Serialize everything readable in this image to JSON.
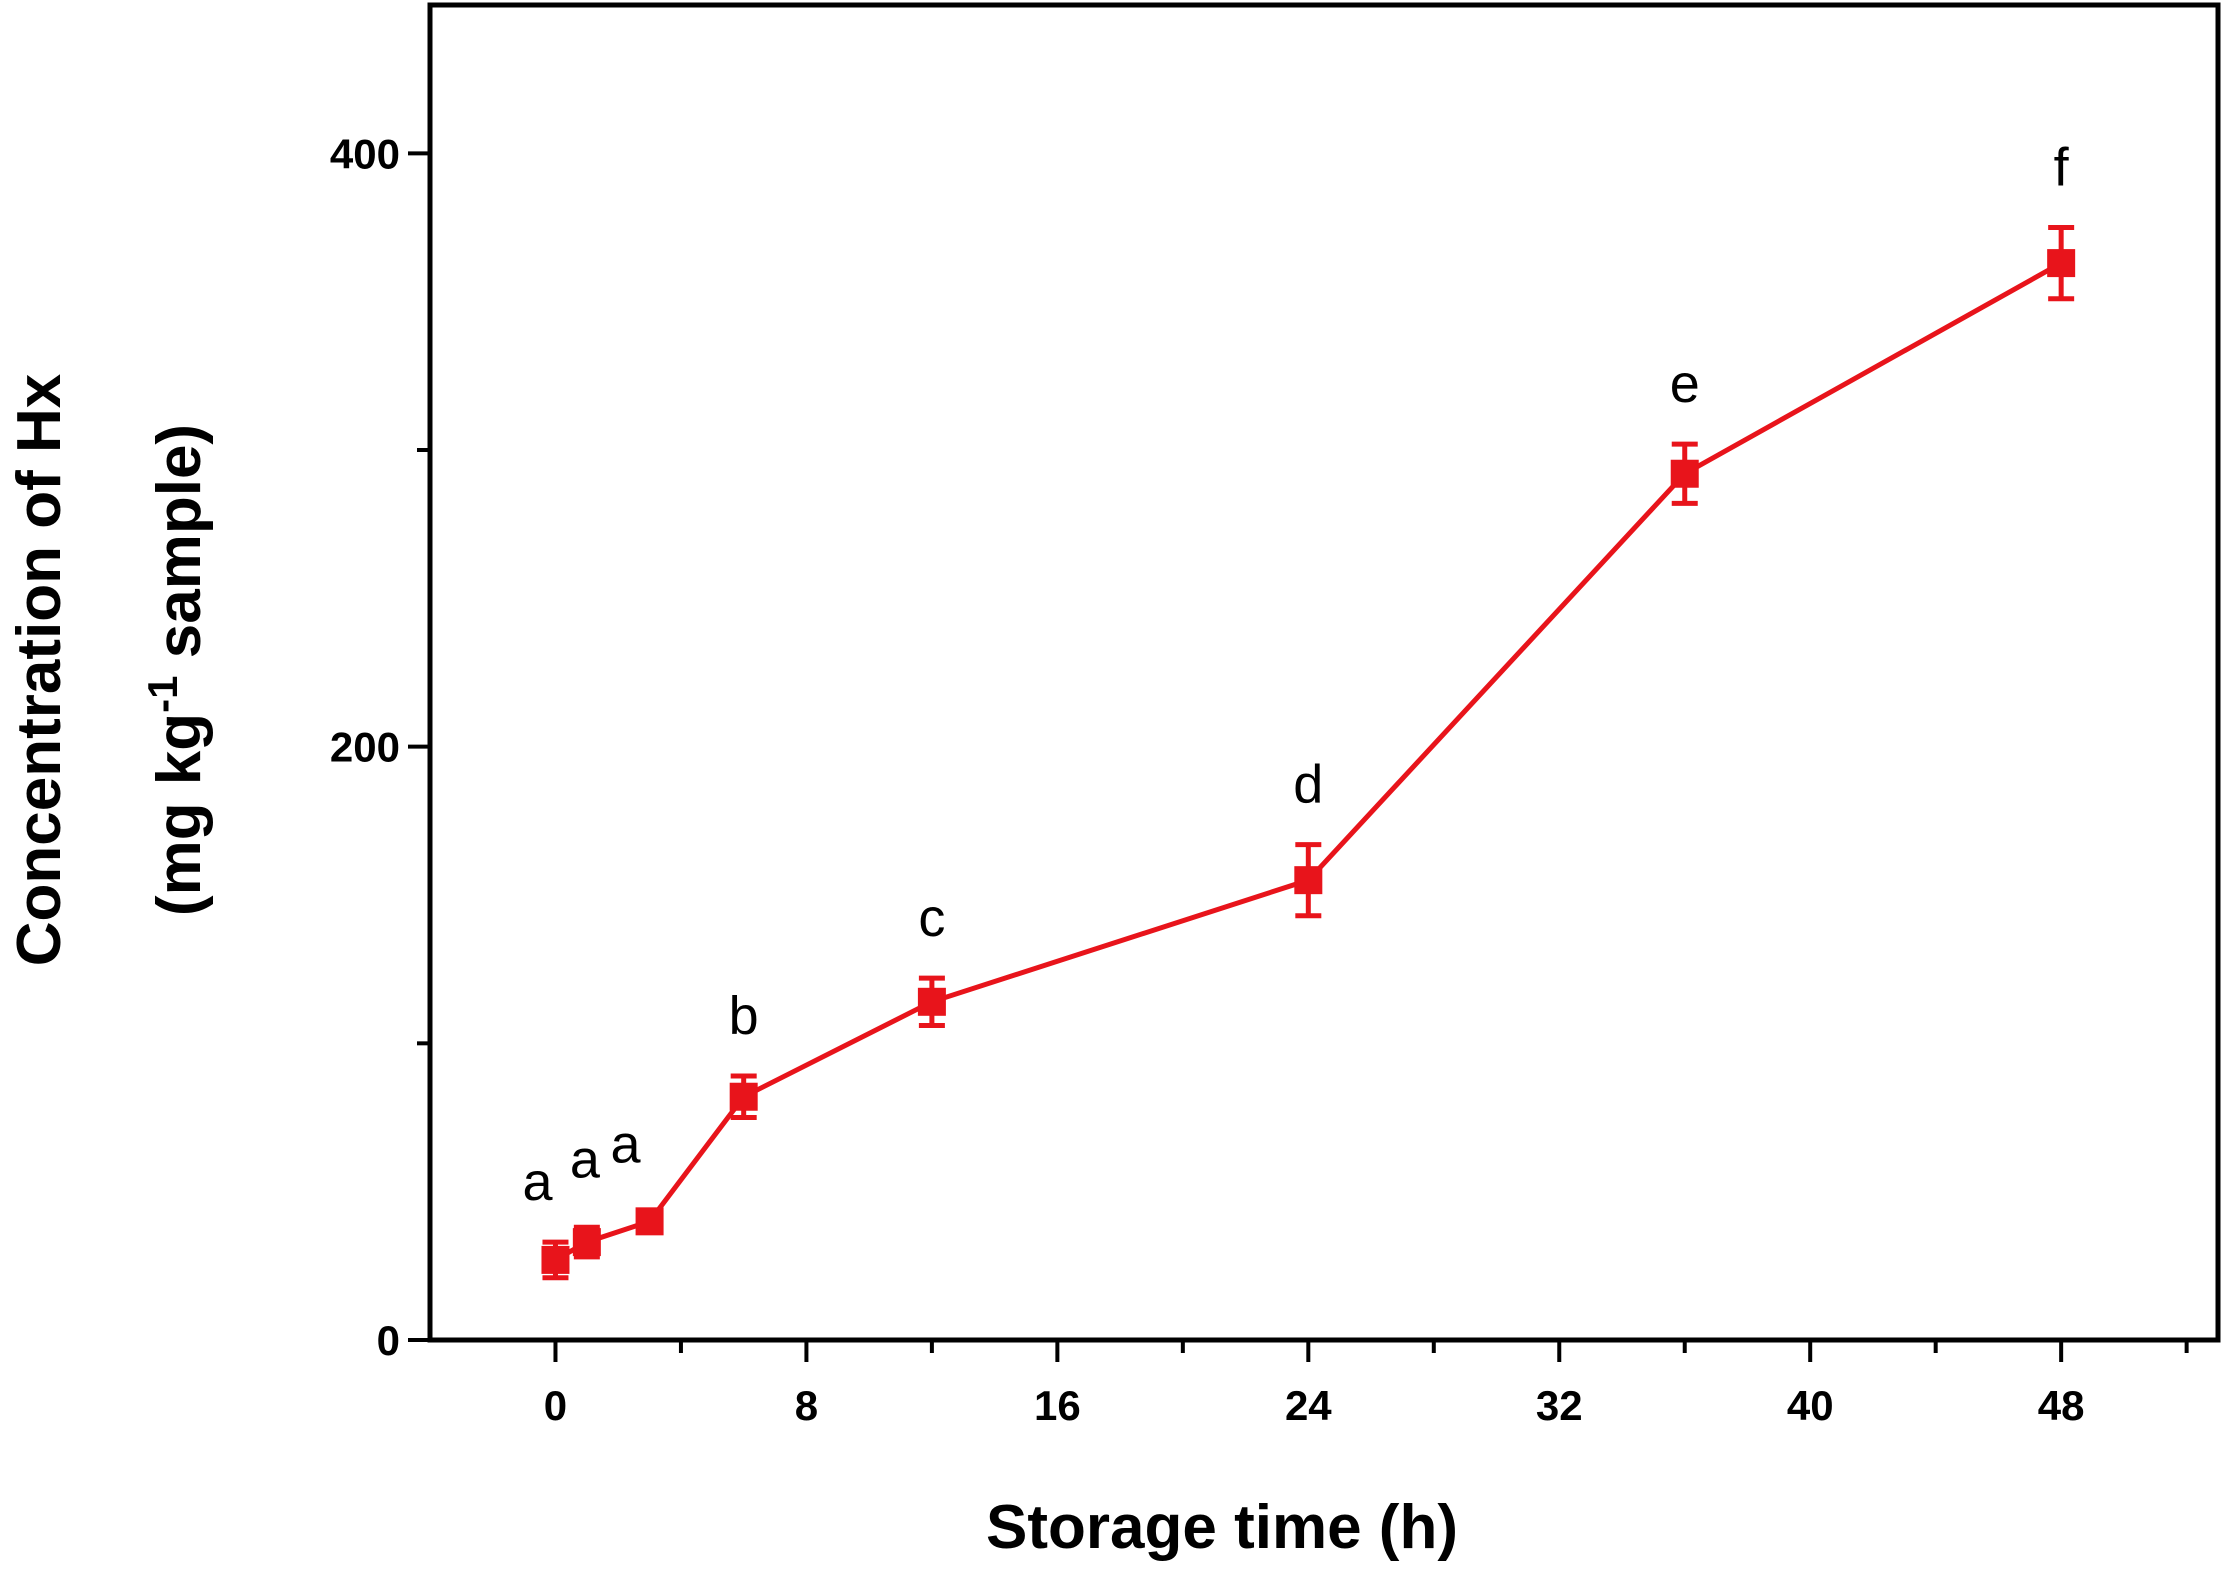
{
  "chart_data": {
    "type": "line",
    "xlabel": "Storage time (h)",
    "ylabel_line1": "Concentration of Hx",
    "ylabel_line2_prefix": "(mg kg",
    "ylabel_line2_sup": "-1",
    "ylabel_line2_suffix": " sample)",
    "xlim": [
      -4,
      53
    ],
    "ylim": [
      0,
      450
    ],
    "x_ticks": [
      0,
      8,
      16,
      24,
      32,
      40,
      48
    ],
    "x_tick_labels": [
      "0",
      "8",
      "16",
      "24",
      "32",
      "40",
      "48"
    ],
    "y_ticks": [
      0,
      200,
      400
    ],
    "y_tick_labels": [
      "0",
      "200",
      "400"
    ],
    "y_minor_ticks": [
      100,
      300
    ],
    "x_minor_ticks": [
      4,
      12,
      20,
      28,
      36,
      44,
      52
    ],
    "grid": false,
    "color": "#e8141b",
    "series": [
      {
        "x": [
          0,
          1,
          3,
          6,
          12,
          24,
          36,
          48
        ],
        "y": [
          27,
          33,
          40,
          82,
          114,
          155,
          292,
          363
        ],
        "err": [
          6,
          5,
          3,
          7,
          8,
          12,
          10,
          12
        ],
        "labels": [
          "a",
          "a",
          "a",
          "b",
          "c",
          "d",
          "e",
          "f"
        ]
      }
    ]
  }
}
